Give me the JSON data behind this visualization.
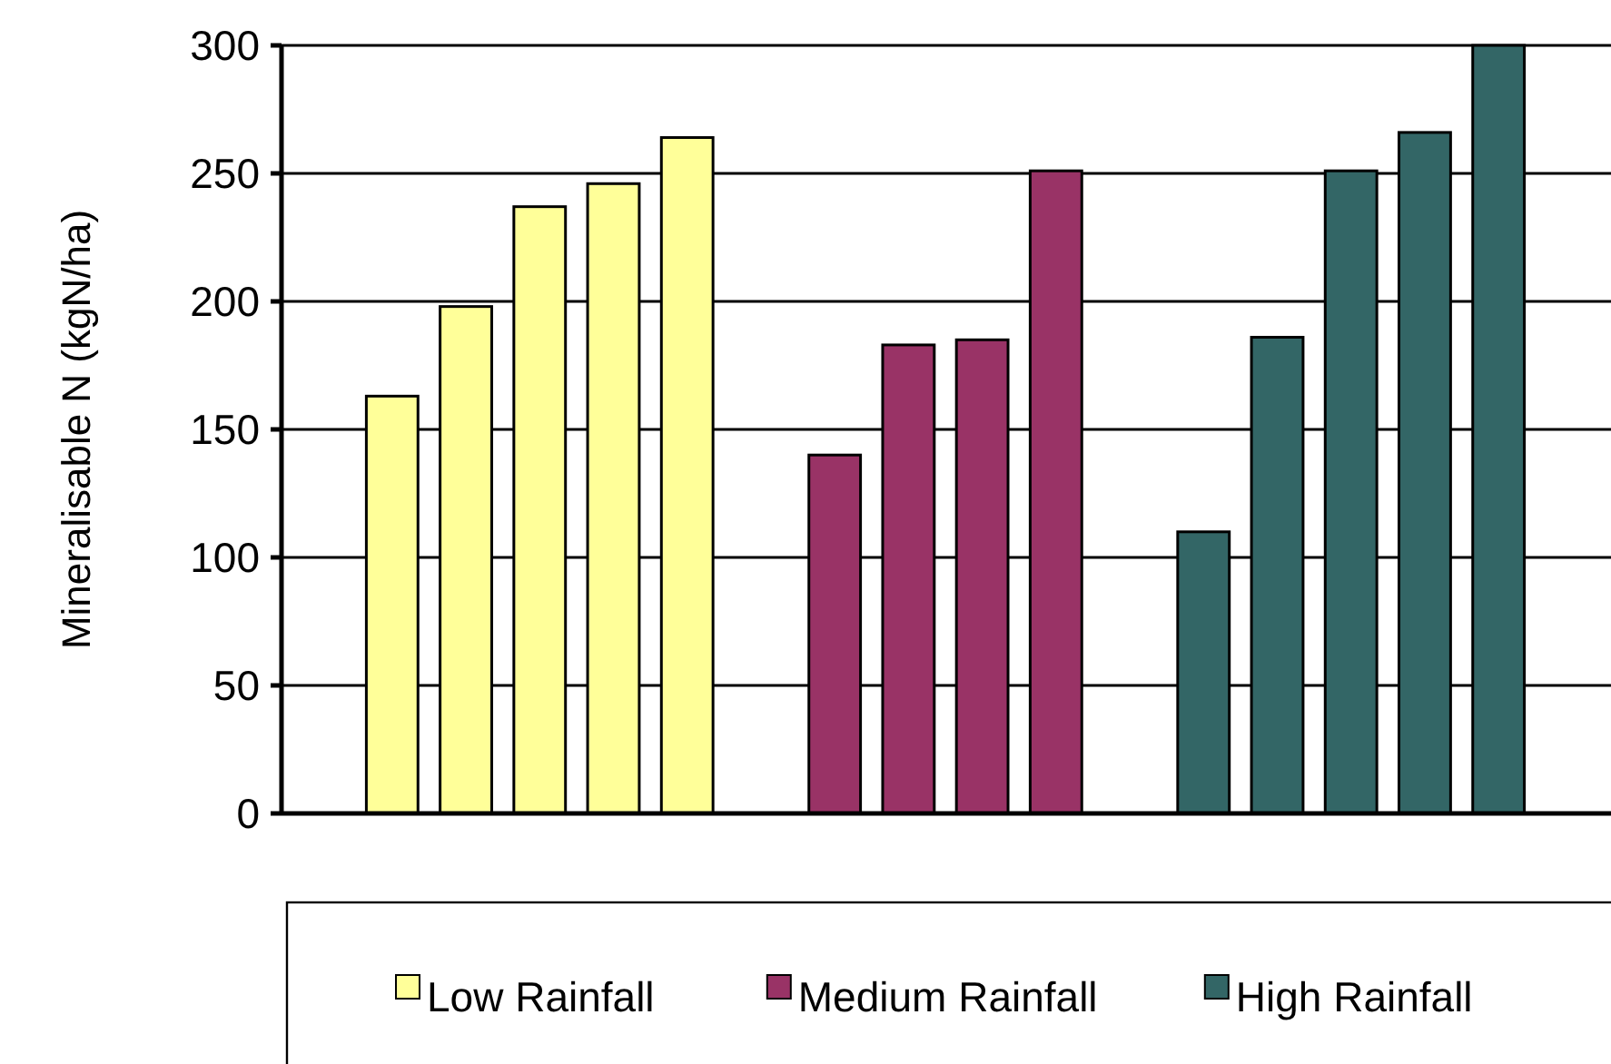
{
  "chart_data": {
    "type": "bar",
    "ylabel": "Mineralisable N  (kgN/ha)",
    "categories": [
      null,
      null,
      null,
      null,
      null,
      null,
      null,
      null,
      null,
      null,
      null,
      null,
      null,
      null,
      null,
      null,
      null,
      null
    ],
    "series": [
      {
        "name": "Low Rainfall",
        "color": "#ffff99",
        "values": [
          null,
          163,
          198,
          237,
          246,
          264,
          null,
          null,
          null,
          null,
          null,
          null,
          null,
          null,
          null,
          null,
          null,
          null
        ]
      },
      {
        "name": "Medium Rainfall",
        "color": "#993366",
        "values": [
          null,
          null,
          null,
          null,
          null,
          null,
          null,
          140,
          183,
          185,
          251,
          null,
          null,
          null,
          null,
          null,
          null,
          null
        ]
      },
      {
        "name": "High Rainfall",
        "color": "#336666",
        "values": [
          null,
          null,
          null,
          null,
          null,
          null,
          null,
          null,
          null,
          null,
          null,
          null,
          110,
          186,
          251,
          266,
          300,
          null
        ]
      }
    ],
    "ylim": [
      0,
      300
    ],
    "yticks": [
      0,
      50,
      100,
      150,
      200,
      250,
      300
    ],
    "grid": "y",
    "legend": "bottom"
  }
}
